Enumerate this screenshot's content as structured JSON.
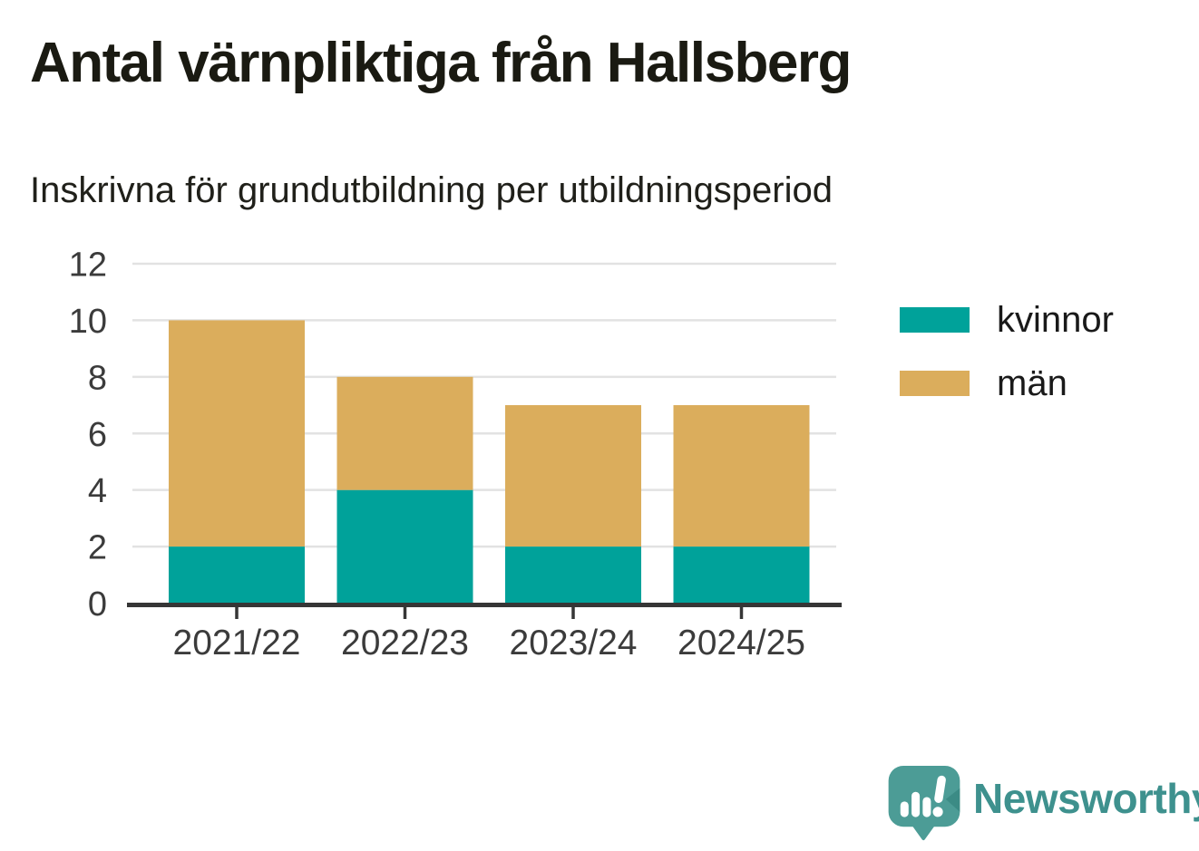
{
  "header": {
    "title": "Antal värnpliktiga från Hallsberg",
    "subtitle": "Inskrivna för grundutbildning per utbildningsperiod"
  },
  "chart_data": {
    "type": "bar",
    "stacked": true,
    "title": "Antal värnpliktiga från Hallsberg",
    "subtitle": "Inskrivna för grundutbildning per utbildningsperiod",
    "categories": [
      "2021/22",
      "2022/23",
      "2023/24",
      "2024/25"
    ],
    "series": [
      {
        "name": "kvinnor",
        "color": "#00a29a",
        "values": [
          2,
          4,
          2,
          2
        ]
      },
      {
        "name": "män",
        "color": "#dbad5c",
        "values": [
          8,
          4,
          5,
          5
        ]
      }
    ],
    "stack_totals": [
      10,
      8,
      7,
      7
    ],
    "xlabel": "",
    "ylabel": "",
    "ylim": [
      0,
      12
    ],
    "yticks": [
      0,
      2,
      4,
      6,
      8,
      10,
      12
    ],
    "grid": "horizontal",
    "legend_position": "right"
  },
  "legend": {
    "items": [
      {
        "label": "kvinnor",
        "color": "#00a29a"
      },
      {
        "label": "män",
        "color": "#dbad5c"
      }
    ]
  },
  "branding": {
    "wordmark": "Newsworthy",
    "logo_icon": "speech-bubble-bar-chart-icon",
    "color": "#3e918e",
    "bubble_color": "#4c9c96"
  },
  "colors": {
    "axis": "#363636",
    "gridline": "#e2e2e2",
    "tick_label": "#3b3b3b",
    "title_text": "#1a1a12"
  }
}
